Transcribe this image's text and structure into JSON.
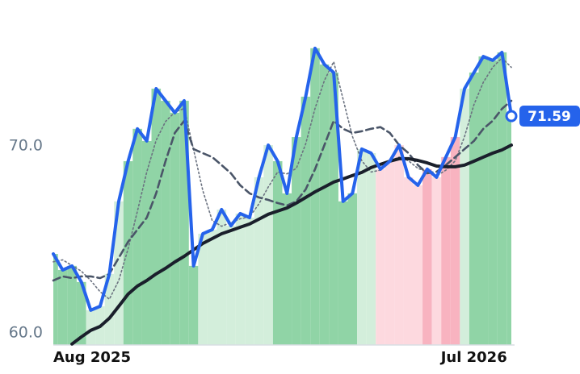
{
  "chart_data": {
    "type": "line",
    "categories": [
      "Aug 2025",
      null,
      null,
      null,
      null,
      null,
      null,
      null,
      null,
      null,
      null,
      null,
      null,
      null,
      null,
      null,
      null,
      null,
      null,
      null,
      null,
      null,
      null,
      null,
      null,
      null,
      null,
      null,
      null,
      null,
      null,
      null,
      null,
      null,
      null,
      null,
      null,
      null,
      null,
      null,
      null,
      null,
      null,
      null,
      null,
      "Jul 2026",
      null,
      null,
      null,
      null
    ],
    "ylim": [
      59.35,
      77.8
    ],
    "yticks": [
      {
        "value": 60,
        "label": "60.0"
      },
      {
        "value": 70,
        "label": "70.0"
      }
    ],
    "bar_colors": [
      "#90d4a6",
      "#90d4a6",
      "#90d4a6",
      "#90d4a6",
      "#d3eedb",
      "#d3eedb",
      "#d3eedb",
      "#d3eedb",
      "#90d4a6",
      "#90d4a6",
      "#90d4a6",
      "#90d4a6",
      "#90d4a6",
      "#90d4a6",
      "#90d4a6",
      "#90d4a6",
      "#d3eedb",
      "#d3eedb",
      "#d3eedb",
      "#d3eedb",
      "#d3eedb",
      "#d3eedb",
      "#d3eedb",
      "#d3eedb",
      "#90d4a6",
      "#90d4a6",
      "#90d4a6",
      "#90d4a6",
      "#90d4a6",
      "#90d4a6",
      "#90d4a6",
      "#90d4a6",
      "#90d4a6",
      "#d3eedb",
      "#d3eedb",
      "#fdd9df",
      "#fdd9df",
      "#fdd9df",
      "#fdd9df",
      "#fdd9df",
      "#f8b3c0",
      "#fdd9df",
      "#f8b3c0",
      "#f8b3c0",
      "#d3eedb",
      "#90d4a6",
      "#90d4a6",
      "#90d4a6",
      "#90d4a6",
      "#90d4a6"
    ],
    "series": [
      {
        "color": "#2563eb",
        "style": "solid",
        "width": 4,
        "values": [
          64.22,
          63.36,
          63.58,
          62.72,
          61.21,
          61.42,
          63.15,
          67.03,
          69.18,
          70.91,
          70.26,
          73.06,
          72.41,
          71.77,
          72.41,
          63.58,
          65.3,
          65.52,
          66.59,
          65.73,
          66.38,
          66.16,
          68.32,
          70.04,
          69.18,
          67.46,
          70.47,
          72.63,
          75.22,
          74.35,
          73.92,
          67.03,
          67.46,
          69.83,
          69.61,
          68.75,
          69.18,
          70.04,
          68.32,
          67.89,
          68.75,
          68.32,
          69.4,
          70.47,
          73.06,
          73.92,
          74.78,
          74.57,
          75.0,
          71.59
        ]
      },
      {
        "color": "#6b7280",
        "style": "dotted",
        "width": 1.6,
        "values": [
          63.8,
          63.9,
          63.6,
          63.3,
          62.8,
          62.2,
          61.8,
          62.8,
          64.5,
          66.5,
          68.6,
          70.3,
          71.3,
          71.8,
          72.0,
          69.8,
          67.6,
          66.0,
          65.7,
          65.9,
          66.1,
          66.2,
          66.9,
          67.8,
          68.6,
          68.5,
          68.8,
          70.1,
          72.0,
          73.5,
          74.5,
          72.5,
          70.5,
          69.2,
          68.6,
          68.7,
          69.2,
          69.4,
          69.2,
          68.8,
          68.6,
          68.4,
          68.7,
          69.2,
          70.5,
          72.2,
          73.4,
          74.2,
          74.7,
          74.2
        ]
      },
      {
        "color": "#4a5568",
        "style": "dashed",
        "width": 2.6,
        "values": [
          62.8,
          63.02,
          62.93,
          63.02,
          63.02,
          62.93,
          63.15,
          64.01,
          64.87,
          65.52,
          66.16,
          67.46,
          69.18,
          70.69,
          71.34,
          69.83,
          69.61,
          69.4,
          68.97,
          68.53,
          67.89,
          67.46,
          67.24,
          67.11,
          66.94,
          66.81,
          67.03,
          67.67,
          68.75,
          70.04,
          71.34,
          70.91,
          70.69,
          70.78,
          70.91,
          71.0,
          70.69,
          70.04,
          69.61,
          68.97,
          68.53,
          68.62,
          68.97,
          69.4,
          69.83,
          70.26,
          70.91,
          71.34,
          71.98,
          72.41
        ]
      },
      {
        "color": "#1a1f2b",
        "style": "solid",
        "width": 4,
        "values": [
          null,
          null,
          59.4,
          59.78,
          60.13,
          60.34,
          60.78,
          61.42,
          62.07,
          62.5,
          62.8,
          63.15,
          63.45,
          63.79,
          64.09,
          64.44,
          64.78,
          65.04,
          65.3,
          65.47,
          65.65,
          65.82,
          66.08,
          66.34,
          66.51,
          66.68,
          66.94,
          67.24,
          67.54,
          67.8,
          68.06,
          68.23,
          68.41,
          68.58,
          68.84,
          69.01,
          69.18,
          69.31,
          69.31,
          69.22,
          69.09,
          68.92,
          68.88,
          68.88,
          68.97,
          69.18,
          69.4,
          69.61,
          69.78,
          70.04
        ]
      }
    ]
  }
}
